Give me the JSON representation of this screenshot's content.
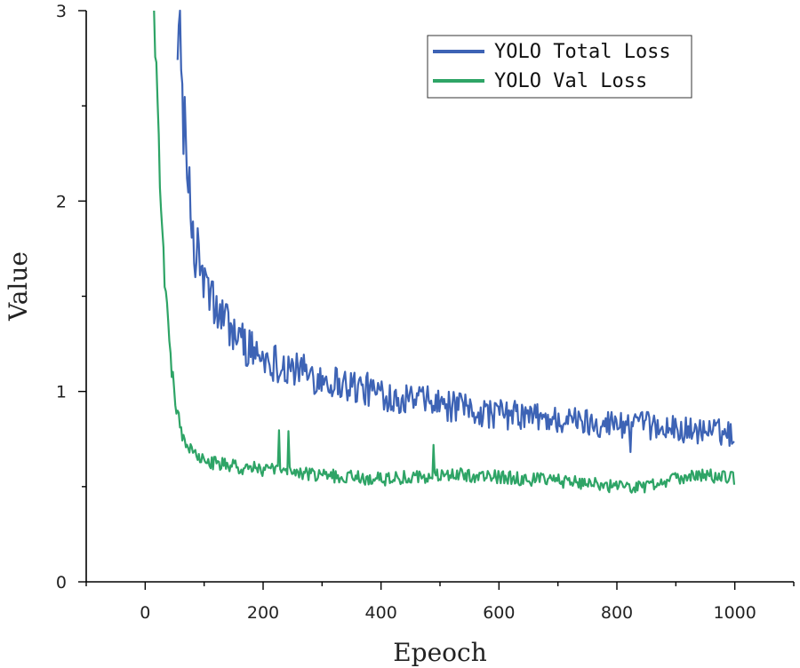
{
  "chart_data": {
    "type": "line",
    "title": "",
    "xlabel": "Epeoch",
    "ylabel": "Value",
    "xlim": [
      -100,
      1100
    ],
    "ylim": [
      0,
      3
    ],
    "x_ticks": [
      0,
      200,
      400,
      600,
      800,
      1000
    ],
    "y_ticks": [
      0,
      1,
      2,
      3
    ],
    "grid": false,
    "legend_position": "top-right",
    "x_points": [
      50,
      60,
      70,
      80,
      90,
      100,
      120,
      140,
      160,
      180,
      200,
      250,
      300,
      350,
      400,
      450,
      500,
      550,
      600,
      650,
      700,
      750,
      800,
      850,
      900,
      950,
      1000
    ],
    "series": [
      {
        "name": "YOLO Total Loss",
        "color": "#3d63b5",
        "x": [
          55,
          60,
          65,
          70,
          75,
          80,
          90,
          100,
          110,
          120,
          140,
          160,
          180,
          200,
          250,
          300,
          350,
          400,
          450,
          500,
          550,
          600,
          650,
          700,
          750,
          800,
          850,
          900,
          950,
          1000
        ],
        "values": [
          3.0,
          2.75,
          2.45,
          2.2,
          2.0,
          1.85,
          1.7,
          1.58,
          1.5,
          1.43,
          1.35,
          1.28,
          1.22,
          1.18,
          1.12,
          1.07,
          1.03,
          0.99,
          0.96,
          0.93,
          0.9,
          0.88,
          0.87,
          0.85,
          0.84,
          0.83,
          0.82,
          0.8,
          0.79,
          0.78
        ]
      },
      {
        "name": "YOLO Val Loss",
        "color": "#2ea466",
        "x": [
          15,
          18,
          22,
          26,
          30,
          35,
          40,
          45,
          50,
          55,
          60,
          70,
          80,
          90,
          100,
          120,
          140,
          160,
          180,
          200,
          250,
          300,
          350,
          400,
          450,
          500,
          550,
          600,
          650,
          700,
          750,
          800,
          850,
          900,
          950,
          1000
        ],
        "values": [
          3.0,
          2.75,
          2.4,
          2.05,
          1.75,
          1.5,
          1.3,
          1.12,
          0.98,
          0.88,
          0.8,
          0.72,
          0.68,
          0.65,
          0.63,
          0.62,
          0.61,
          0.6,
          0.6,
          0.59,
          0.57,
          0.56,
          0.55,
          0.54,
          0.55,
          0.56,
          0.56,
          0.55,
          0.54,
          0.53,
          0.52,
          0.5,
          0.5,
          0.55,
          0.56,
          0.54
        ]
      }
    ]
  }
}
